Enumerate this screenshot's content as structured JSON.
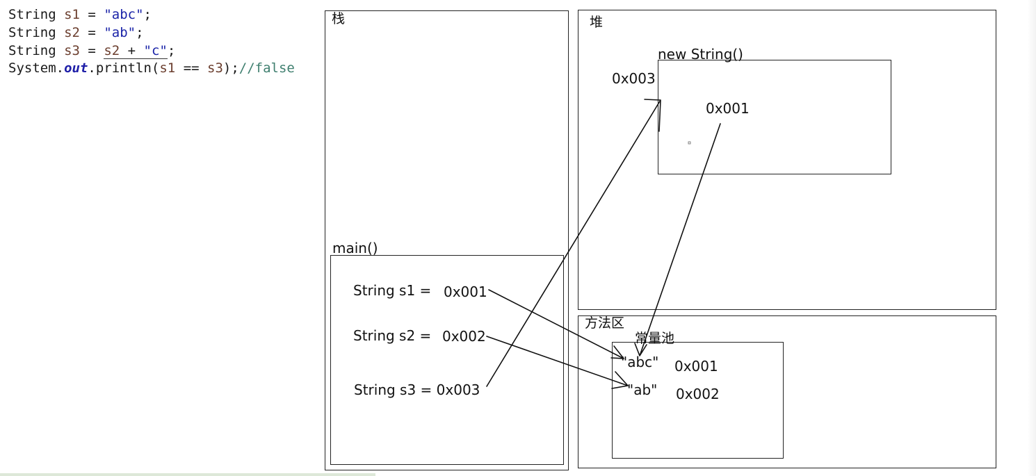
{
  "code": {
    "line1": {
      "type": "String",
      "var": "s1",
      "op": " = ",
      "value": "\"abc\"",
      "end": ";"
    },
    "line2": {
      "type": "String",
      "var": "s2",
      "op": " = ",
      "value": "\"ab\"",
      "end": ";"
    },
    "line3": {
      "type": "String",
      "var": "s3",
      "op": " = ",
      "expr_var": "s2",
      "expr_plus": " + ",
      "expr_str": "\"c\"",
      "end": ";"
    },
    "line4": {
      "prefix": "System.",
      "field": "out",
      "call": ".println(",
      "arg1": "s1",
      "eq": " == ",
      "arg2": "s3",
      "close": ");",
      "comment": "//false"
    }
  },
  "stack": {
    "title": "栈",
    "frame_title": "main()",
    "s1": {
      "label": "String s1 =",
      "addr": "0x001"
    },
    "s2": {
      "label": "String s2 =",
      "addr": "0x002"
    },
    "s3": {
      "label": "String s3 = 0x003"
    }
  },
  "heap": {
    "title": "堆",
    "object_title": "new String()",
    "object_addr": "0x003",
    "object_value": "0x001"
  },
  "method_area": {
    "title": "方法区",
    "pool_title": "常量池",
    "abc": {
      "literal": "\"abc\"",
      "addr": "0x001"
    },
    "ab": {
      "literal": "\"ab\"",
      "addr": "0x002"
    }
  }
}
